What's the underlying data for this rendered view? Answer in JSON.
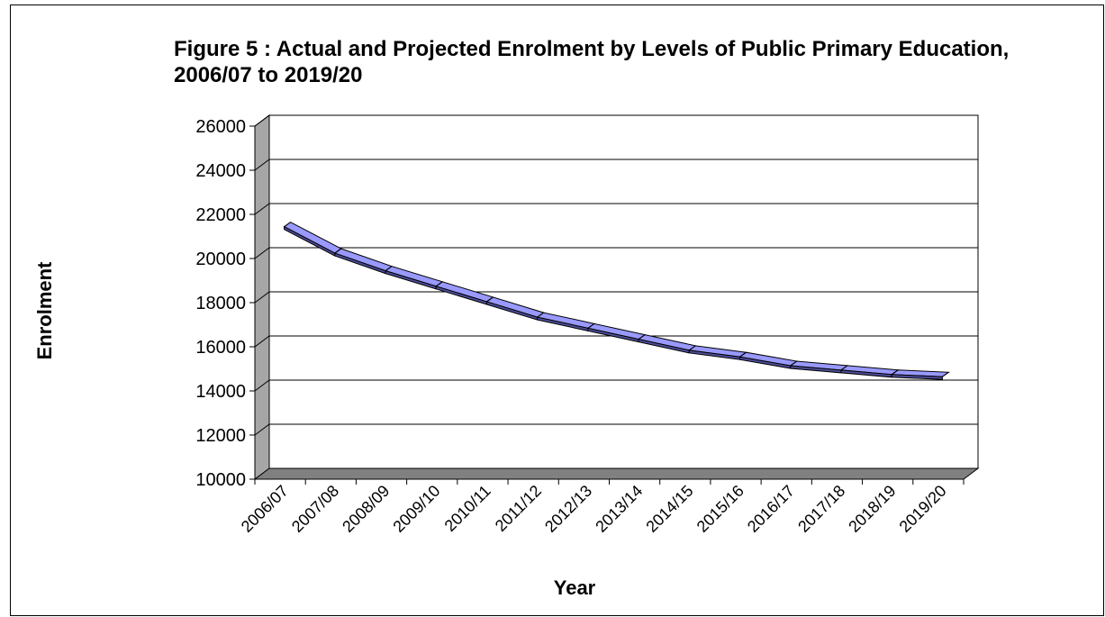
{
  "chart_data": {
    "type": "line",
    "style": "3d",
    "title": "Figure 5 : Actual and Projected Enrolment by Levels of Public Primary Education, 2006/07 to 2019/20",
    "xlabel": "Year",
    "ylabel": "Enrolment",
    "ylim": [
      10000,
      26000
    ],
    "yticks": [
      "26000",
      "24000",
      "22000",
      "20000",
      "18000",
      "16000",
      "14000",
      "12000",
      "10000"
    ],
    "grid": true,
    "legend": "none",
    "categories": [
      "2006/07",
      "2007/08",
      "2008/09",
      "2009/10",
      "2010/11",
      "2011/12",
      "2012/13",
      "2013/14",
      "2014/15",
      "2015/16",
      "2016/17",
      "2017/18",
      "2018/19",
      "2019/20"
    ],
    "series": [
      {
        "values": [
          21300,
          20100,
          19300,
          18600,
          17900,
          17200,
          16700,
          16200,
          15700,
          15400,
          15000,
          14800,
          14600,
          14500
        ],
        "color": "#9999ff"
      }
    ]
  }
}
